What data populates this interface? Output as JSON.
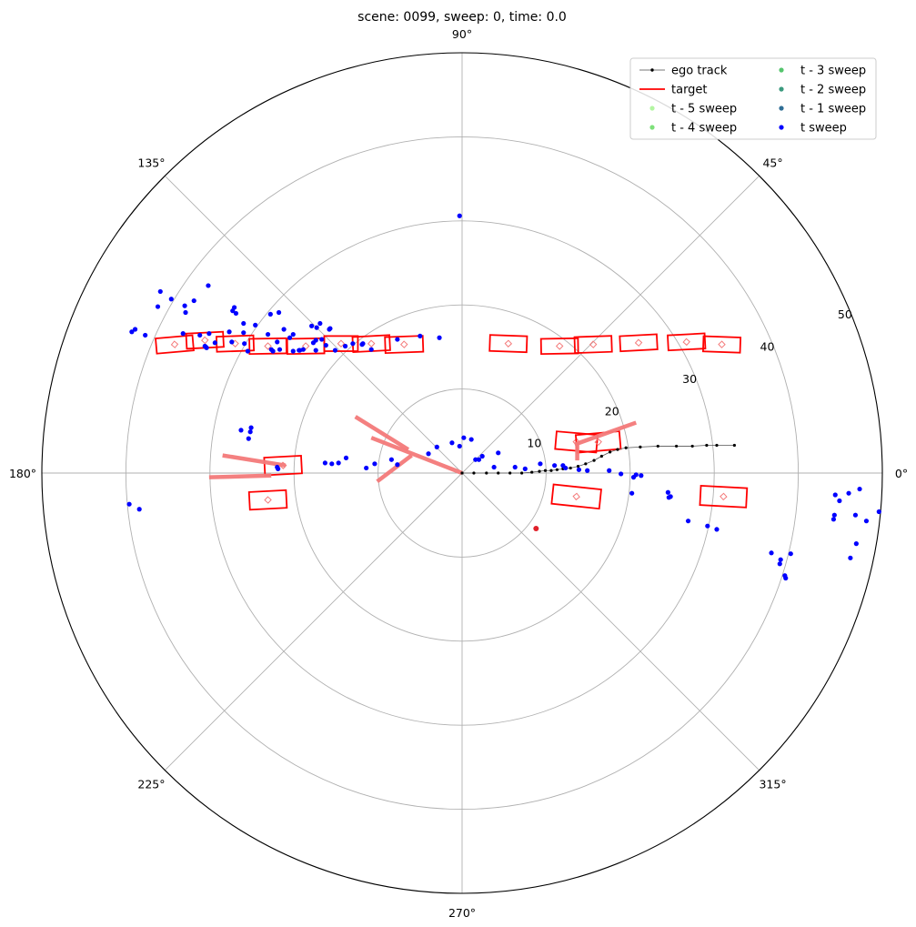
{
  "chart_data": {
    "type": "scatter",
    "projection": "polar",
    "title": "scene: 0099, sweep: 0, time: 0.0",
    "rlim": [
      0,
      50
    ],
    "r_ticks": [
      "10",
      "20",
      "30",
      "40",
      "50"
    ],
    "theta_ticks": [
      "0°",
      "45°",
      "90°",
      "135°",
      "180°",
      "225°",
      "270°",
      "315°"
    ],
    "grid": true,
    "legend": {
      "placement": "top-right",
      "columns": 2,
      "entries": [
        {
          "label": "ego track",
          "color": "#000000",
          "style": "line-marker"
        },
        {
          "label": "target",
          "color": "#ff0000",
          "style": "line"
        },
        {
          "label": "t - 5 sweep",
          "color": "#b3f5a2",
          "style": "marker"
        },
        {
          "label": "t - 4 sweep",
          "color": "#7ee07a",
          "style": "marker"
        },
        {
          "label": "t - 3 sweep",
          "color": "#55c56e",
          "style": "marker"
        },
        {
          "label": "t - 2 sweep",
          "color": "#3b9a7e",
          "style": "marker"
        },
        {
          "label": "t - 1 sweep",
          "color": "#2f6e95",
          "style": "marker"
        },
        {
          "label": "t sweep",
          "color": "#0000ff",
          "style": "marker"
        }
      ]
    },
    "colors": {
      "target_box": "#ff0000",
      "velocity": "#f47a7a",
      "ego_track": "#000000",
      "grid": "#b0b0b0"
    },
    "series": [
      {
        "name": "ego track",
        "x": [
          0,
          1.4,
          2.9,
          4.3,
          5.7,
          7.1,
          8.3,
          9.2,
          9.9,
          10.6,
          11.3,
          12.0,
          12.9,
          13.8,
          14.7,
          15.7,
          16.6,
          17.6,
          18.5,
          19.5,
          21.2,
          23.3,
          25.5,
          27.4,
          29.1,
          30.3,
          32.4
        ],
        "y": [
          0,
          0,
          0,
          0,
          0,
          0,
          0.1,
          0.2,
          0.3,
          0.3,
          0.4,
          0.5,
          0.6,
          0.8,
          1.1,
          1.5,
          2.0,
          2.5,
          2.8,
          3.0,
          3.1,
          3.2,
          3.2,
          3.2,
          3.3,
          3.3,
          3.3
        ]
      },
      {
        "name": "target",
        "boxes": [
          {
            "x": -34.2,
            "y": 15.3,
            "w": 4.4,
            "h": 1.8,
            "angle": 5
          },
          {
            "x": -30.6,
            "y": 15.8,
            "w": 4.4,
            "h": 1.8,
            "angle": 3
          },
          {
            "x": -27.0,
            "y": 15.4,
            "w": 4.4,
            "h": 1.8,
            "angle": 2
          },
          {
            "x": -23.1,
            "y": 15.1,
            "w": 4.4,
            "h": 1.8,
            "angle": 1
          },
          {
            "x": -18.6,
            "y": 15.1,
            "w": 4.4,
            "h": 1.8,
            "angle": 1
          },
          {
            "x": -14.4,
            "y": 15.4,
            "w": 4.0,
            "h": 1.8,
            "angle": 0
          },
          {
            "x": -10.8,
            "y": 15.4,
            "w": 4.4,
            "h": 1.8,
            "angle": 3
          },
          {
            "x": -6.9,
            "y": 15.3,
            "w": 4.5,
            "h": 1.9,
            "angle": 2
          },
          {
            "x": 5.5,
            "y": 15.4,
            "w": 4.4,
            "h": 1.9,
            "angle": -2
          },
          {
            "x": 11.6,
            "y": 15.1,
            "w": 4.4,
            "h": 1.8,
            "angle": 1
          },
          {
            "x": 15.6,
            "y": 15.3,
            "w": 4.4,
            "h": 1.9,
            "angle": 2
          },
          {
            "x": 21.0,
            "y": 15.5,
            "w": 4.4,
            "h": 1.8,
            "angle": 3
          },
          {
            "x": 26.7,
            "y": 15.6,
            "w": 4.4,
            "h": 1.8,
            "angle": 3
          },
          {
            "x": 30.9,
            "y": 15.3,
            "w": 4.4,
            "h": 1.8,
            "angle": -2
          },
          {
            "x": 31.1,
            "y": -2.8,
            "w": 5.5,
            "h": 2.3,
            "angle": -3
          },
          {
            "x": 13.6,
            "y": 3.7,
            "w": 4.9,
            "h": 2.1,
            "angle": -5
          },
          {
            "x": 16.2,
            "y": 3.7,
            "w": 5.2,
            "h": 2.1,
            "angle": 5
          },
          {
            "x": 13.6,
            "y": -2.8,
            "w": 5.7,
            "h": 2.3,
            "angle": -6
          },
          {
            "x": -21.3,
            "y": 0.9,
            "w": 4.4,
            "h": 2.1,
            "angle": 3
          },
          {
            "x": -23.1,
            "y": -3.2,
            "w": 4.4,
            "h": 2.1,
            "angle": 3
          }
        ],
        "velocities": [
          {
            "x": 0,
            "y": 0,
            "dx": -10.8,
            "dy": 4.2
          },
          {
            "x": -6.0,
            "y": 2.1,
            "dx": -4.1,
            "dy": -3.1
          },
          {
            "x": -6.4,
            "y": 2.8,
            "dx": -6.3,
            "dy": 3.9
          },
          {
            "x": -21.0,
            "y": 0.9,
            "dx": -7.5,
            "dy": 1.2
          },
          {
            "x": -22.7,
            "y": -0.3,
            "dx": -7.4,
            "dy": -0.2
          },
          {
            "x": 13.7,
            "y": 3.6,
            "dx": 0,
            "dy": -2.1
          },
          {
            "x": 13.4,
            "y": 3.4,
            "dx": 7.3,
            "dy": 2.6
          }
        ]
      },
      {
        "name": "t sweep",
        "x": [
          -0.3,
          -2.7,
          -5.0,
          -7.7,
          -10.8,
          -11.9,
          -13.9,
          -15.1,
          -17.4,
          -18.9,
          -19.4,
          -20.1,
          -20.5,
          -22.0,
          -23.1,
          -24.6,
          -25.5,
          -27.4,
          -29.4,
          -30.1,
          -31.2,
          -33.2,
          -37.7,
          -39.3,
          -38.9,
          -22.7,
          -25.9,
          -26.0,
          -26.0,
          -27.7,
          -22.8,
          -21.8,
          -30.4,
          -30.6,
          -30.5,
          -19.3,
          -21.7,
          -20.1,
          -22.5,
          -17.4,
          -16.2,
          -13.0,
          -11.8,
          -16.9,
          -15.7,
          -17.7,
          -16.7,
          -15.8,
          -17.3,
          -17.9,
          -21.2,
          -26.9,
          -27.3,
          -27.1,
          -30.2,
          -31.9,
          -32.9,
          -33.0,
          -34.6,
          -35.9,
          -36.2,
          -39.6,
          -38.4,
          -26.3,
          -25.4,
          -25.2,
          -25.1,
          -22.0,
          -21.9,
          -16.3,
          -15.5,
          -14.7,
          -13.8,
          -11.4,
          -10.4,
          -8.4,
          -7.7,
          -4.0,
          -3.0,
          -1.2,
          -0.3,
          0.2,
          1.1,
          1.6,
          2.0,
          2.4,
          3.8,
          4.3,
          6.3,
          7.5,
          9.3,
          11.0,
          12.0,
          12.3,
          13.9,
          14.9,
          17.5,
          18.9,
          20.4,
          21.3,
          20.7,
          20.2,
          24.8,
          24.6,
          24.5,
          26.9,
          30.3,
          29.2,
          37.8,
          38.4,
          38.5,
          39.1,
          36.8,
          37.9,
          44.4,
          44.9,
          46.2,
          46.9,
          44.2,
          44.3,
          46.0,
          47.3,
          49.6,
          46.8,
          48.1,
          52.1,
          53.2,
          55.9,
          52.9,
          50.4,
          51.4,
          49.8,
          52.5,
          57.9,
          60.4,
          60.7
        ],
        "y": [
          30.6,
          16.1,
          16.3,
          15.9,
          14.7,
          15.3,
          15.1,
          14.6,
          15.8,
          14.7,
          14.6,
          16.5,
          16.1,
          15.6,
          16.5,
          17.6,
          14.5,
          15.6,
          15.5,
          16.6,
          16.4,
          16.6,
          16.4,
          16.8,
          17.1,
          14.7,
          15.4,
          16.7,
          17.8,
          16.8,
          18.9,
          19.1,
          14.9,
          15.1,
          15.0,
          14.6,
          14.7,
          14.5,
          14.5,
          14.6,
          15.2,
          15.4,
          15.4,
          17.8,
          17.2,
          15.5,
          15.9,
          17.1,
          17.3,
          17.5,
          17.1,
          19.0,
          19.3,
          19.7,
          22.3,
          20.5,
          19.1,
          19.9,
          20.7,
          21.6,
          19.8,
          -3.7,
          -4.3,
          5.1,
          4.1,
          4.9,
          5.4,
          0.7,
          0.5,
          1.2,
          1.1,
          1.2,
          1.8,
          0.6,
          1.1,
          1.6,
          1.0,
          2.3,
          3.1,
          3.6,
          3.2,
          4.2,
          4.0,
          1.6,
          1.6,
          2.0,
          0.7,
          2.4,
          0.7,
          0.5,
          1.1,
          0.9,
          0.9,
          0.6,
          0.4,
          0.3,
          0.3,
          -0.1,
          -0.5,
          -0.3,
          -0.2,
          -2.4,
          -2.8,
          -2.9,
          -2.3,
          -5.7,
          -6.7,
          -6.3,
          -10.8,
          -12.2,
          -12.5,
          -9.6,
          -9.5,
          -10.3,
          -2.6,
          -3.3,
          -10.1,
          -8.4,
          -5.5,
          -5.0,
          -2.4,
          -1.9,
          -4.6,
          -5.0,
          -5.7,
          -0.5,
          -3.0,
          -3.2,
          -2.5,
          -6.5,
          -7.9,
          -7.6,
          -7.6,
          -2.7,
          -2.1,
          -2.4
        ],
        "y_alt": [],
        "frame": "ego"
      }
    ]
  }
}
